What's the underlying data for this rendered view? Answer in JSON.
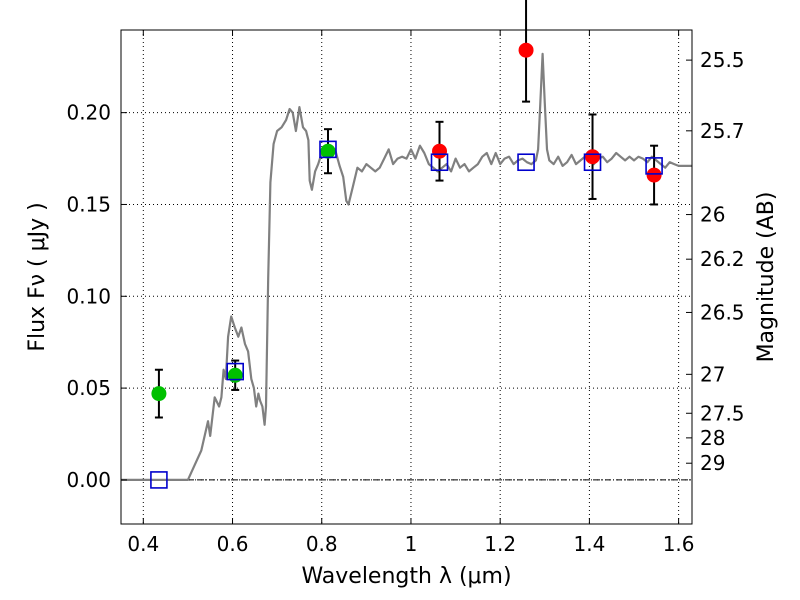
{
  "chart_data": {
    "type": "scatter",
    "xlabel": "Wavelength  λ (μm)",
    "ylabel": "Flux  Fν  ( μJy )",
    "ylabel_right": "Magnitude (AB)",
    "xlim": [
      0.35,
      1.63
    ],
    "ylim": [
      -0.024,
      0.245
    ],
    "x_ticks": [
      0.4,
      0.6,
      0.8,
      1.0,
      1.2,
      1.4,
      1.6
    ],
    "x_tick_labels": [
      "0.4",
      "0.6",
      "0.8",
      "1",
      "1.2",
      "1.4",
      "1.6"
    ],
    "y_ticks": [
      0.0,
      0.05,
      0.1,
      0.15,
      0.2
    ],
    "y_tick_labels": [
      "0.00",
      "0.05",
      "0.10",
      "0.15",
      "0.20"
    ],
    "right_ticks": [
      {
        "label": "25.5",
        "flux": 0.2286
      },
      {
        "label": "25.7",
        "flux": 0.1901
      },
      {
        "label": "26",
        "flux": 0.1445
      },
      {
        "label": "26.2",
        "flux": 0.1202
      },
      {
        "label": "26.5",
        "flux": 0.0912
      },
      {
        "label": "27",
        "flux": 0.0575
      },
      {
        "label": "27.5",
        "flux": 0.0363
      },
      {
        "label": "28",
        "flux": 0.0229
      },
      {
        "label": "29",
        "flux": 0.0091
      }
    ],
    "grid": true,
    "zero_line": true,
    "series": [
      {
        "kind": "line",
        "color": "#808080",
        "points": [
          [
            0.35,
            0.0
          ],
          [
            0.5,
            0.0
          ],
          [
            0.515,
            0.008
          ],
          [
            0.53,
            0.016
          ],
          [
            0.545,
            0.032
          ],
          [
            0.55,
            0.024
          ],
          [
            0.56,
            0.045
          ],
          [
            0.57,
            0.04
          ],
          [
            0.575,
            0.045
          ],
          [
            0.58,
            0.06
          ],
          [
            0.585,
            0.055
          ],
          [
            0.59,
            0.078
          ],
          [
            0.597,
            0.089
          ],
          [
            0.605,
            0.083
          ],
          [
            0.613,
            0.078
          ],
          [
            0.62,
            0.083
          ],
          [
            0.628,
            0.074
          ],
          [
            0.635,
            0.07
          ],
          [
            0.642,
            0.055
          ],
          [
            0.648,
            0.05
          ],
          [
            0.653,
            0.04
          ],
          [
            0.658,
            0.047
          ],
          [
            0.662,
            0.043
          ],
          [
            0.667,
            0.04
          ],
          [
            0.672,
            0.03
          ],
          [
            0.675,
            0.04
          ],
          [
            0.68,
            0.11
          ],
          [
            0.685,
            0.162
          ],
          [
            0.692,
            0.183
          ],
          [
            0.7,
            0.19
          ],
          [
            0.71,
            0.192
          ],
          [
            0.72,
            0.196
          ],
          [
            0.728,
            0.202
          ],
          [
            0.735,
            0.2
          ],
          [
            0.742,
            0.19
          ],
          [
            0.75,
            0.203
          ],
          [
            0.758,
            0.192
          ],
          [
            0.765,
            0.19
          ],
          [
            0.77,
            0.185
          ],
          [
            0.773,
            0.163
          ],
          [
            0.778,
            0.158
          ],
          [
            0.785,
            0.168
          ],
          [
            0.792,
            0.172
          ],
          [
            0.8,
            0.178
          ],
          [
            0.81,
            0.18
          ],
          [
            0.82,
            0.178
          ],
          [
            0.83,
            0.18
          ],
          [
            0.84,
            0.171
          ],
          [
            0.848,
            0.165
          ],
          [
            0.855,
            0.152
          ],
          [
            0.86,
            0.15
          ],
          [
            0.87,
            0.16
          ],
          [
            0.88,
            0.17
          ],
          [
            0.89,
            0.168
          ],
          [
            0.9,
            0.172
          ],
          [
            0.91,
            0.17
          ],
          [
            0.92,
            0.168
          ],
          [
            0.93,
            0.17
          ],
          [
            0.94,
            0.175
          ],
          [
            0.95,
            0.18
          ],
          [
            0.96,
            0.172
          ],
          [
            0.97,
            0.175
          ],
          [
            0.98,
            0.176
          ],
          [
            0.99,
            0.175
          ],
          [
            1.0,
            0.18
          ],
          [
            1.01,
            0.175
          ],
          [
            1.02,
            0.182
          ],
          [
            1.03,
            0.178
          ],
          [
            1.04,
            0.172
          ],
          [
            1.05,
            0.17
          ],
          [
            1.06,
            0.168
          ],
          [
            1.07,
            0.17
          ],
          [
            1.08,
            0.172
          ],
          [
            1.09,
            0.168
          ],
          [
            1.1,
            0.175
          ],
          [
            1.11,
            0.17
          ],
          [
            1.12,
            0.172
          ],
          [
            1.13,
            0.168
          ],
          [
            1.14,
            0.17
          ],
          [
            1.15,
            0.172
          ],
          [
            1.16,
            0.176
          ],
          [
            1.17,
            0.178
          ],
          [
            1.18,
            0.172
          ],
          [
            1.19,
            0.178
          ],
          [
            1.2,
            0.172
          ],
          [
            1.21,
            0.175
          ],
          [
            1.22,
            0.176
          ],
          [
            1.23,
            0.172
          ],
          [
            1.24,
            0.174
          ],
          [
            1.25,
            0.175
          ],
          [
            1.26,
            0.173
          ],
          [
            1.27,
            0.172
          ],
          [
            1.28,
            0.174
          ],
          [
            1.285,
            0.18
          ],
          [
            1.29,
            0.205
          ],
          [
            1.295,
            0.232
          ],
          [
            1.3,
            0.205
          ],
          [
            1.305,
            0.18
          ],
          [
            1.31,
            0.174
          ],
          [
            1.32,
            0.172
          ],
          [
            1.33,
            0.176
          ],
          [
            1.34,
            0.171
          ],
          [
            1.35,
            0.173
          ],
          [
            1.36,
            0.177
          ],
          [
            1.37,
            0.172
          ],
          [
            1.38,
            0.174
          ],
          [
            1.39,
            0.176
          ],
          [
            1.4,
            0.177
          ],
          [
            1.41,
            0.172
          ],
          [
            1.42,
            0.175
          ],
          [
            1.43,
            0.176
          ],
          [
            1.44,
            0.173
          ],
          [
            1.45,
            0.175
          ],
          [
            1.46,
            0.178
          ],
          [
            1.47,
            0.176
          ],
          [
            1.48,
            0.174
          ],
          [
            1.49,
            0.176
          ],
          [
            1.5,
            0.174
          ],
          [
            1.51,
            0.176
          ],
          [
            1.52,
            0.175
          ],
          [
            1.53,
            0.173
          ],
          [
            1.54,
            0.176
          ],
          [
            1.55,
            0.174
          ],
          [
            1.56,
            0.172
          ],
          [
            1.57,
            0.17
          ],
          [
            1.58,
            0.173
          ],
          [
            1.59,
            0.172
          ],
          [
            1.6,
            0.171
          ],
          [
            1.63,
            0.171
          ]
        ]
      },
      {
        "kind": "errorbar",
        "color": "#00c000",
        "points": [
          {
            "x": 0.435,
            "y": 0.047,
            "err": 0.013
          },
          {
            "x": 0.606,
            "y": 0.057,
            "err": 0.008
          },
          {
            "x": 0.814,
            "y": 0.179,
            "err": 0.012
          }
        ]
      },
      {
        "kind": "errorbar",
        "color": "#ff0000",
        "points": [
          {
            "x": 1.064,
            "y": 0.179,
            "err": 0.016
          },
          {
            "x": 1.258,
            "y": 0.234,
            "err": 0.028
          },
          {
            "x": 1.407,
            "y": 0.176,
            "err": 0.023
          },
          {
            "x": 1.545,
            "y": 0.166,
            "err": 0.016
          }
        ]
      },
      {
        "kind": "marker",
        "marker": "square-open",
        "color": "#0000cc",
        "points": [
          [
            0.435,
            0.0
          ],
          [
            0.606,
            0.059
          ],
          [
            0.814,
            0.18
          ],
          [
            1.064,
            0.173
          ],
          [
            1.258,
            0.173
          ],
          [
            1.407,
            0.173
          ],
          [
            1.545,
            0.171
          ]
        ]
      }
    ]
  }
}
